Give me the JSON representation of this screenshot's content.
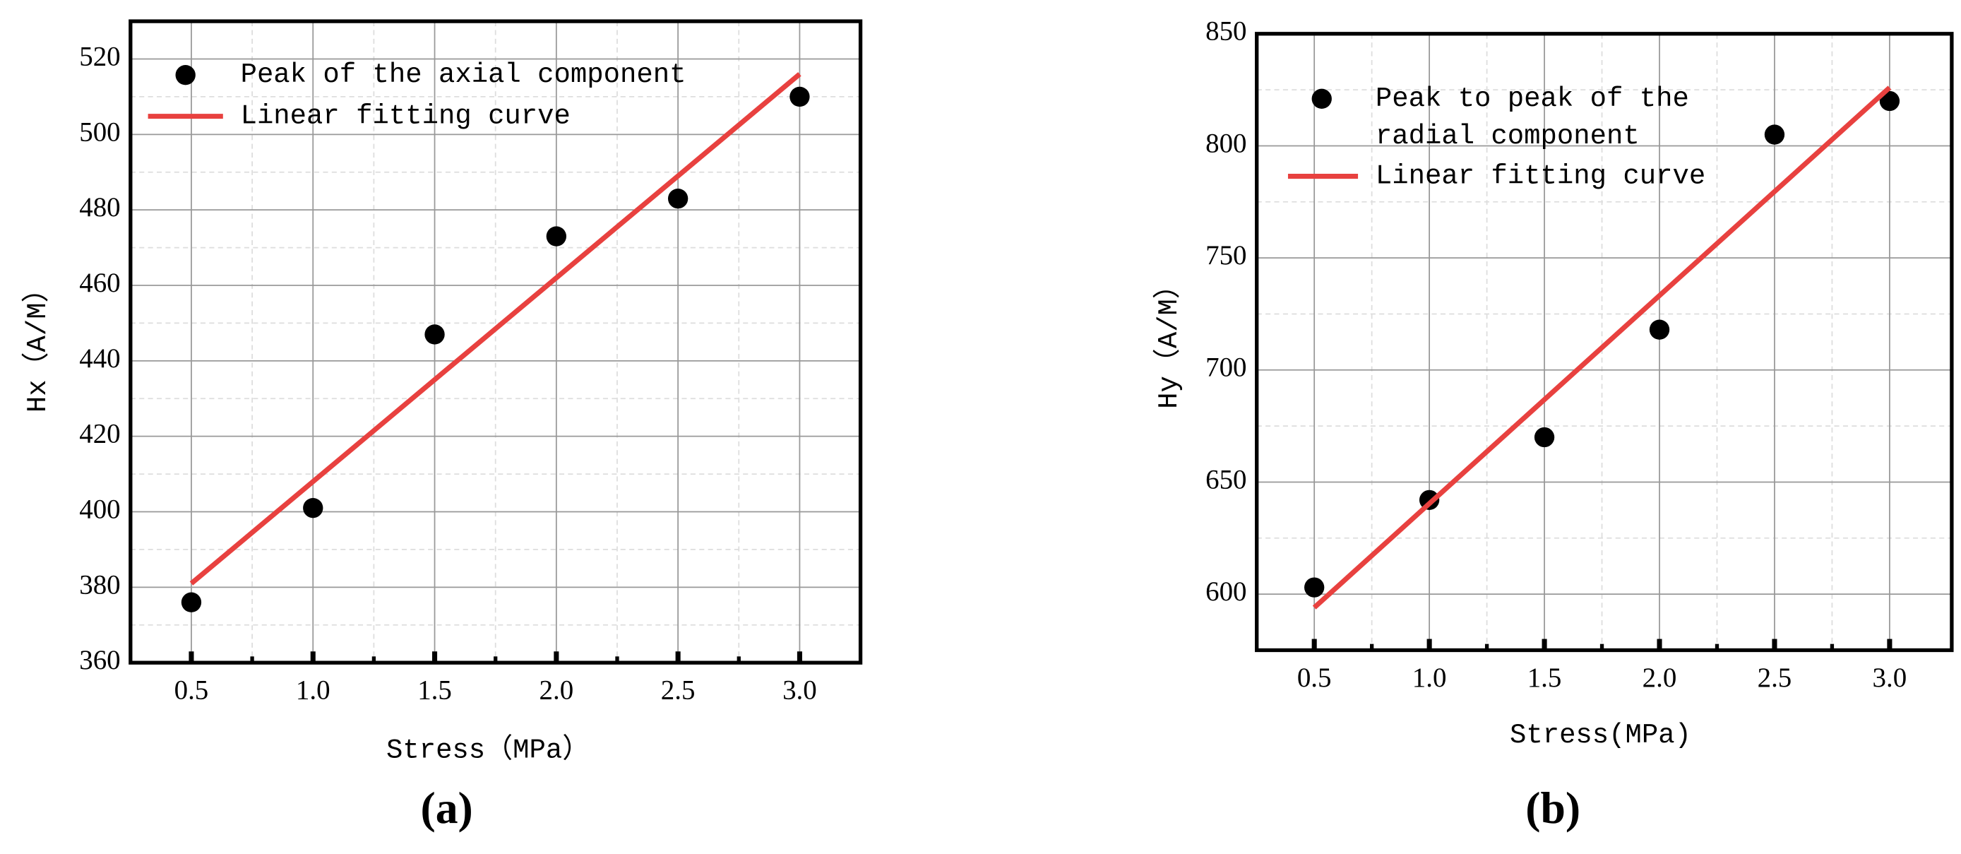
{
  "chart_data": [
    {
      "type": "scatter",
      "label": "(a)",
      "x_label": "Stress（MPa）",
      "y_label": "Hx（A/M）",
      "xlim": [
        0.25,
        3.25
      ],
      "ylim": [
        360,
        530
      ],
      "xticks": [
        0.5,
        {
          "value": 1.0,
          "label": "1.0"
        },
        1.5,
        {
          "value": 2.0,
          "label": "2.0"
        },
        2.5,
        {
          "value": 3.0,
          "label": "3.0"
        }
      ],
      "yticks": [
        360,
        380,
        400,
        420,
        440,
        460,
        480,
        500,
        520
      ],
      "grid": true,
      "series": [
        {
          "name": "Peak of the axial component",
          "type": "scatter",
          "color": "#000000",
          "x": [
            0.5,
            1.0,
            1.5,
            2.0,
            2.5,
            3.0
          ],
          "values": [
            376,
            401,
            447,
            473,
            483,
            510
          ]
        },
        {
          "name": "Linear fitting curve",
          "type": "line",
          "color": "#e8413f",
          "x": [
            0.5,
            3.0
          ],
          "values": [
            381,
            516
          ]
        }
      ]
    },
    {
      "type": "scatter",
      "label": "(b)",
      "x_label": "Stress(MPa)",
      "y_label": "Hy（A/M）",
      "xlim": [
        0.25,
        3.27
      ],
      "ylim": [
        575,
        850
      ],
      "xticks": [
        0.5,
        {
          "value": 1.0,
          "label": "1.0"
        },
        1.5,
        {
          "value": 2.0,
          "label": "2.0"
        },
        2.5,
        {
          "value": 3.0,
          "label": "3.0"
        }
      ],
      "yticks": [
        600,
        650,
        700,
        750,
        800,
        850
      ],
      "grid": true,
      "series": [
        {
          "name": "Peak to peak of the radial component",
          "type": "scatter",
          "color": "#000000",
          "x": [
            0.5,
            1.0,
            1.5,
            2.0,
            2.5,
            3.0
          ],
          "values": [
            603,
            642,
            670,
            718,
            805,
            820
          ]
        },
        {
          "name": "Linear fitting curve",
          "type": "line",
          "color": "#e8413f",
          "x": [
            0.5,
            3.0
          ],
          "values": [
            594,
            826
          ]
        }
      ]
    }
  ]
}
